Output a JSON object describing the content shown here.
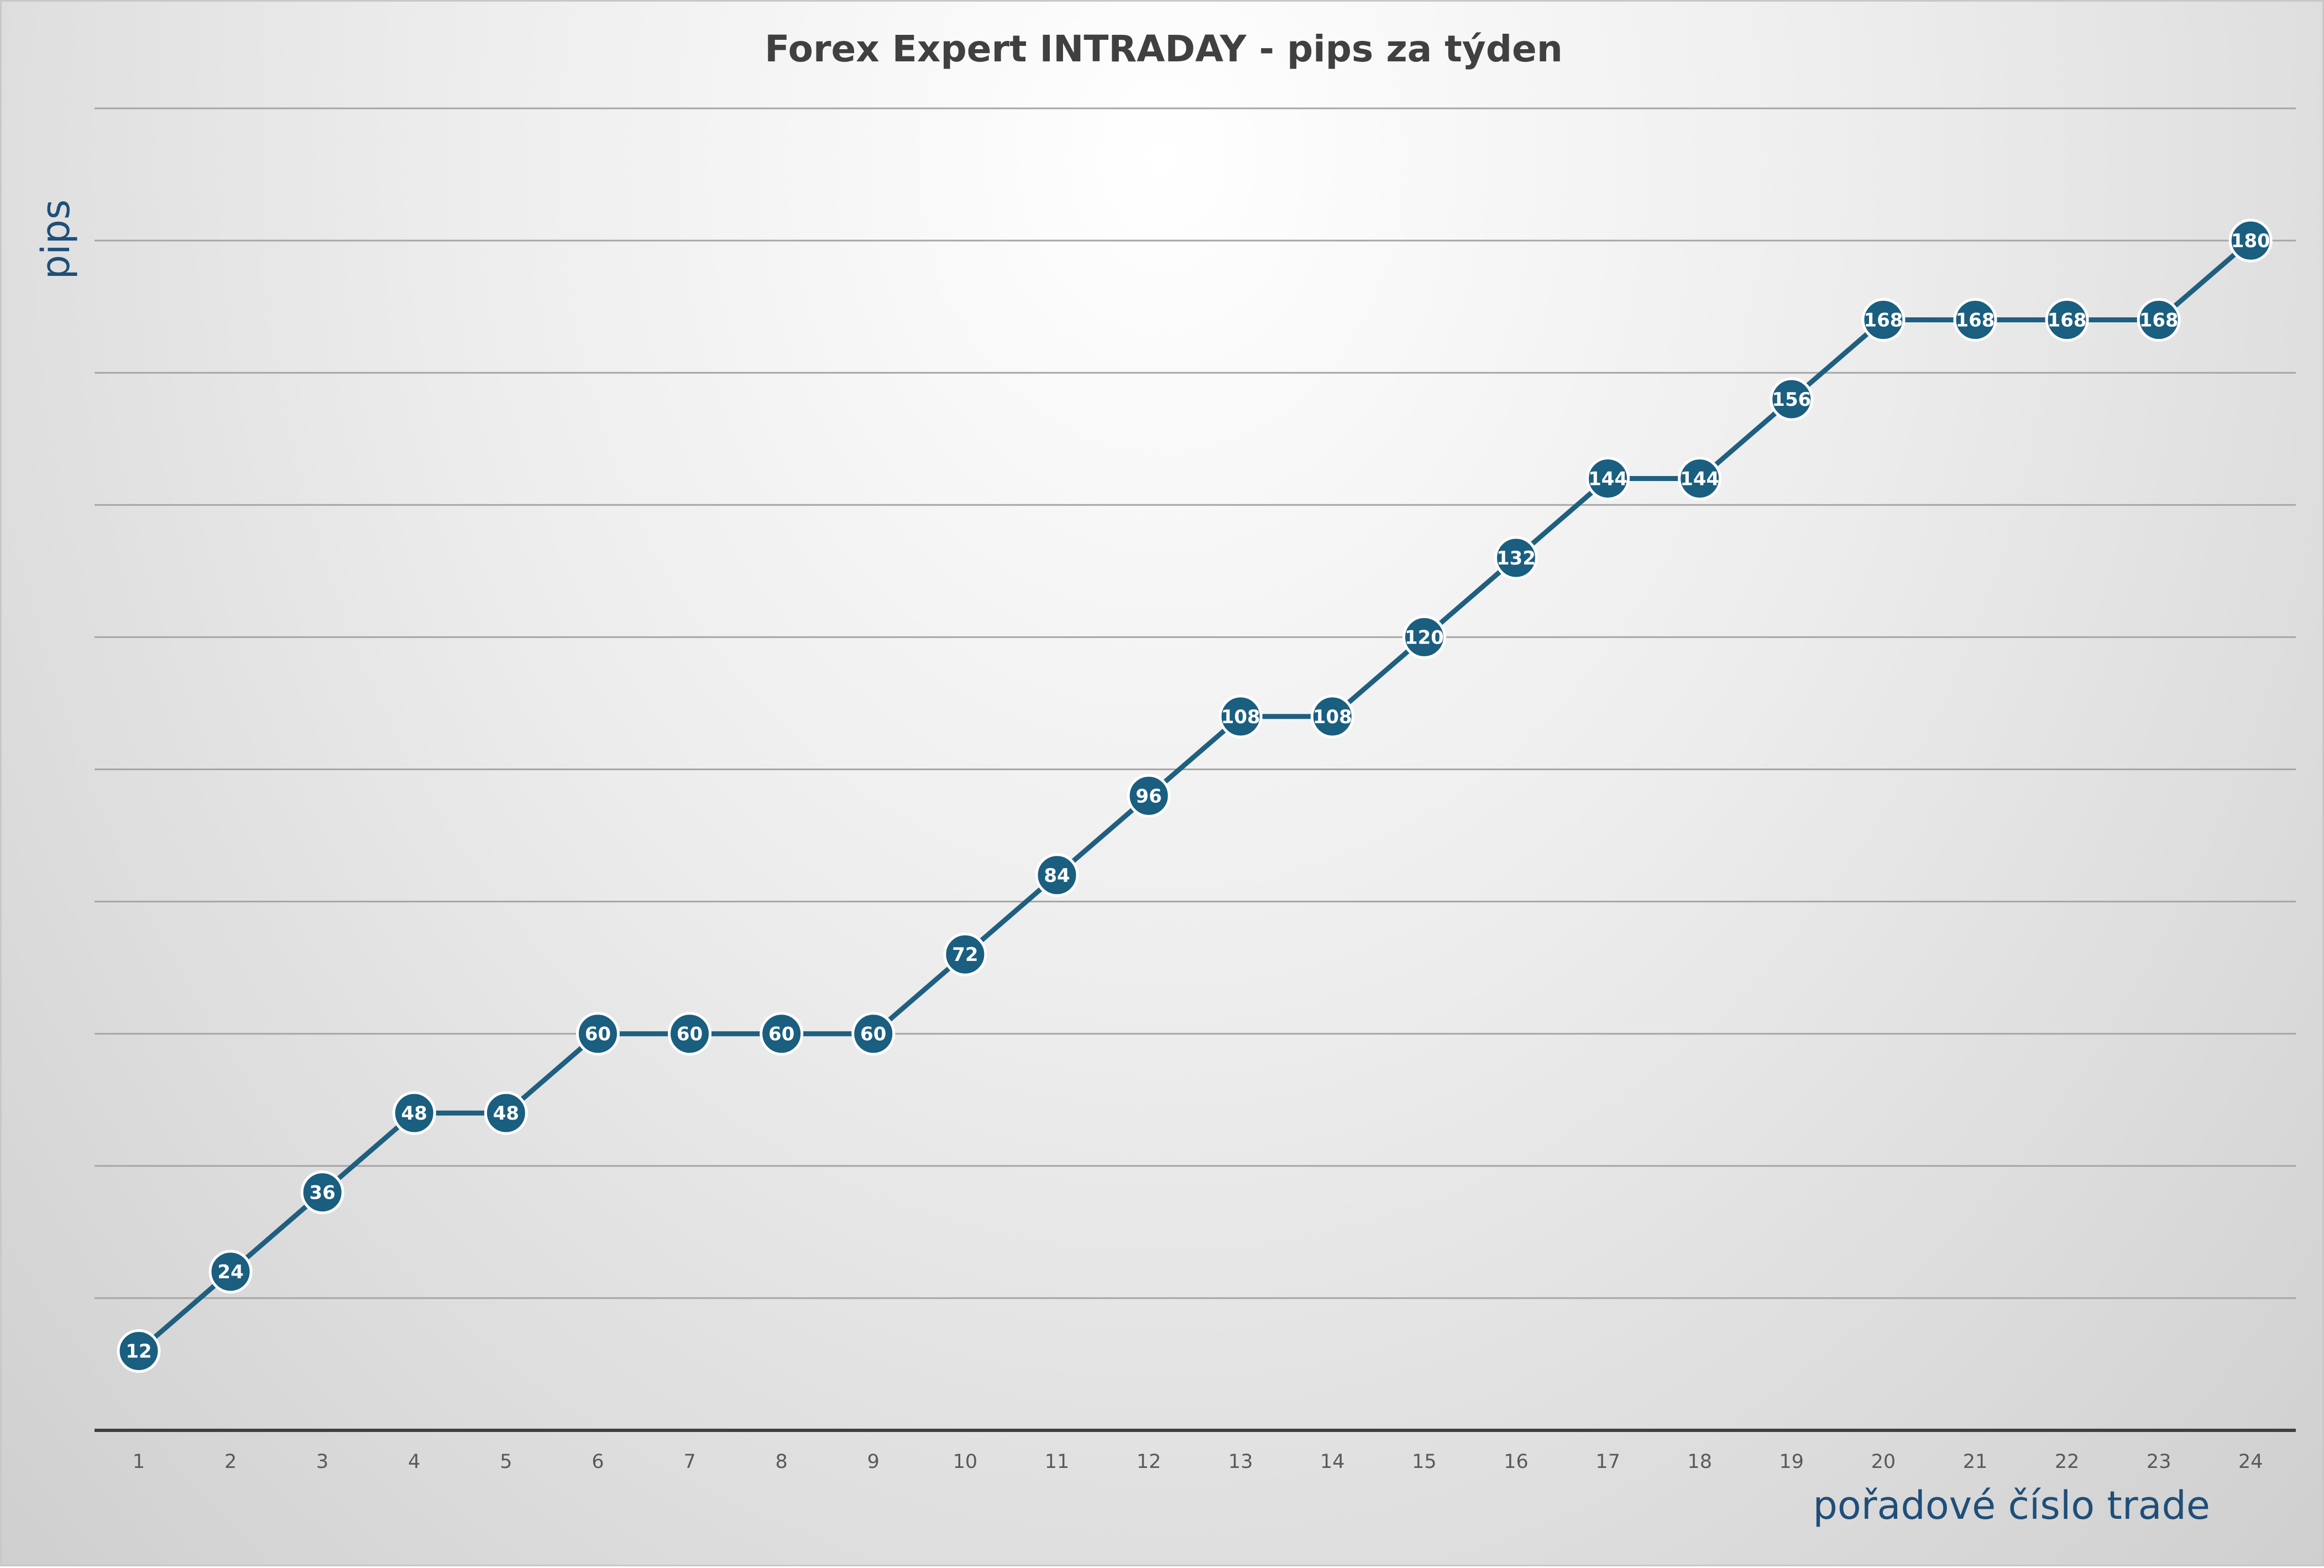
{
  "chart_data": {
    "type": "line",
    "title": "Forex Expert INTRADAY - pips za týden",
    "xlabel": "pořadové číslo trade",
    "ylabel": "pips",
    "x": [
      1,
      2,
      3,
      4,
      5,
      6,
      7,
      8,
      9,
      10,
      11,
      12,
      13,
      14,
      15,
      16,
      17,
      18,
      19,
      20,
      21,
      22,
      23,
      24
    ],
    "values": [
      12,
      24,
      36,
      48,
      48,
      60,
      60,
      60,
      60,
      72,
      84,
      96,
      108,
      108,
      120,
      132,
      144,
      144,
      156,
      168,
      168,
      168,
      168,
      180
    ],
    "ylim": [
      0,
      200
    ],
    "y_gridline_step": 20,
    "y_tick_labels_shown": false,
    "grid": true,
    "data_labels": true,
    "legend": "none",
    "series_color": "#1f5f80",
    "marker_color": "#1a5e80",
    "axis_title_color": "#1f4e79"
  }
}
